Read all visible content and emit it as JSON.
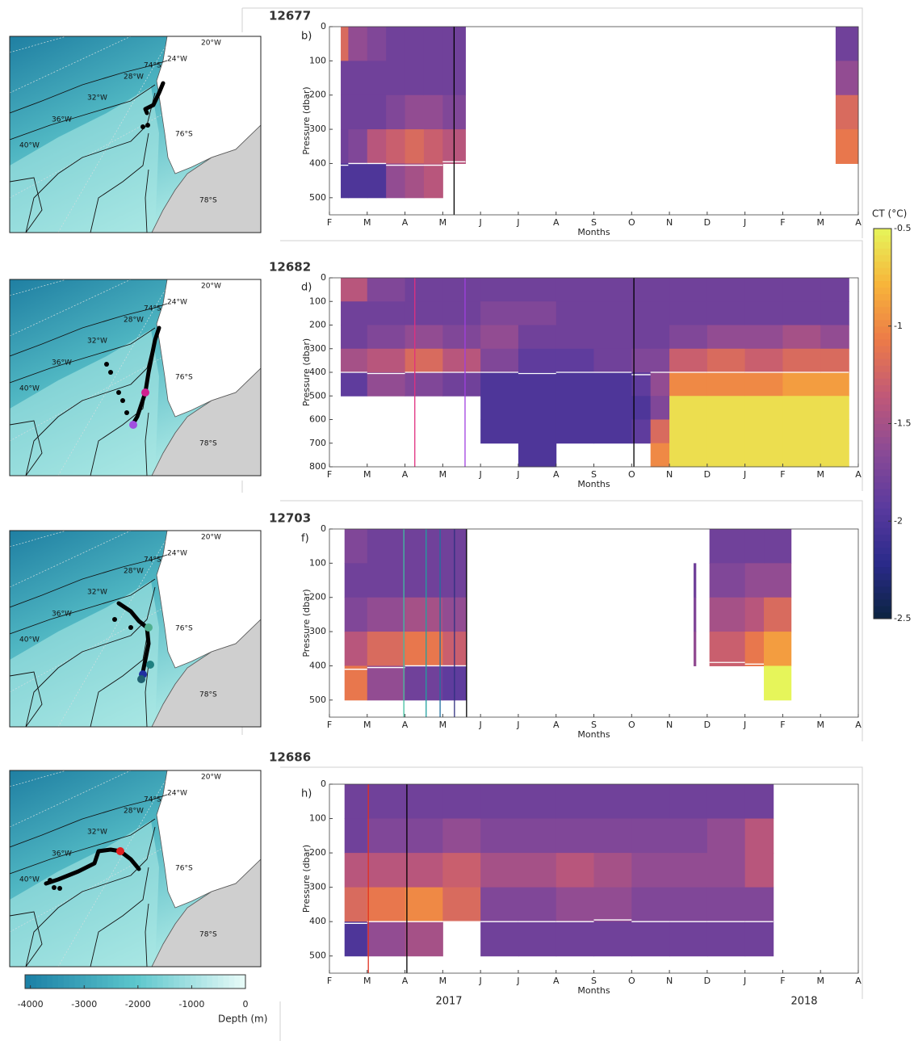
{
  "chart_data": [
    {
      "type": "heatmap",
      "title": "12677",
      "panel_label": "b)",
      "xlabel": "Months",
      "ylabel": "Pressure (dbar)",
      "categories": [
        "F",
        "M",
        "A",
        "M",
        "J",
        "J",
        "A",
        "S",
        "O",
        "N",
        "D",
        "J",
        "F",
        "M",
        "A"
      ],
      "xlim": [
        0,
        14
      ],
      "ylim": [
        0,
        550
      ],
      "yticks": [
        0,
        100,
        200,
        300,
        400,
        500
      ],
      "invert_y": true,
      "depth_bins": [
        0,
        100,
        200,
        300,
        400,
        500
      ],
      "line_color": "#ffffff",
      "columns": [
        {
          "bins": [
            0.3,
            0.5
          ],
          "values": [
            -1.2,
            -1.8,
            -1.8,
            -1.8,
            -2.0
          ],
          "line": 405
        },
        {
          "bins": [
            0.5,
            1
          ],
          "values": [
            -1.6,
            -1.8,
            -1.8,
            -1.7,
            -2.0
          ],
          "line": 400
        },
        {
          "bins": [
            1,
            1.5
          ],
          "values": [
            -1.7,
            -1.8,
            -1.8,
            -1.4,
            -2.0
          ],
          "line": 400
        },
        {
          "bins": [
            1.5,
            2
          ],
          "values": [
            -1.8,
            -1.8,
            -1.7,
            -1.3,
            -1.6
          ],
          "line": 405
        },
        {
          "bins": [
            2,
            2.5
          ],
          "values": [
            -1.8,
            -1.8,
            -1.6,
            -1.2,
            -1.5
          ],
          "line": 405
        },
        {
          "bins": [
            2.5,
            3
          ],
          "values": [
            -1.8,
            -1.8,
            -1.6,
            -1.3,
            -1.4
          ],
          "line": 405
        },
        {
          "bins": [
            3,
            3.6
          ],
          "values": [
            -1.8,
            -1.8,
            -1.7,
            -1.4,
            null
          ],
          "line": 395
        },
        {
          "bins": [
            13.4,
            14
          ],
          "values": [
            -1.8,
            -1.6,
            -1.2,
            -1.1,
            null
          ]
        }
      ],
      "vlines": [
        {
          "x": 3.3,
          "color": "#000000"
        }
      ]
    },
    {
      "type": "heatmap",
      "title": "12682",
      "panel_label": "d)",
      "xlabel": "Months",
      "ylabel": "Pressure (dbar)",
      "categories": [
        "F",
        "M",
        "A",
        "M",
        "J",
        "J",
        "A",
        "S",
        "O",
        "N",
        "D",
        "J",
        "F",
        "M",
        "A"
      ],
      "xlim": [
        0,
        14
      ],
      "ylim": [
        0,
        800
      ],
      "yticks": [
        0,
        100,
        200,
        300,
        400,
        500,
        600,
        700,
        800
      ],
      "invert_y": true,
      "depth_bins": [
        0,
        100,
        200,
        300,
        400,
        500,
        600,
        700,
        800
      ],
      "line_color": "#ffffff",
      "columns": [
        {
          "bins": [
            0.3,
            1
          ],
          "values": [
            -1.4,
            -1.8,
            -1.8,
            -1.5,
            -1.9,
            null,
            null,
            null
          ],
          "line": 400
        },
        {
          "bins": [
            1,
            2
          ],
          "values": [
            -1.7,
            -1.8,
            -1.7,
            -1.4,
            -1.6,
            null,
            null,
            null
          ],
          "line": 405
        },
        {
          "bins": [
            2,
            3
          ],
          "values": [
            -1.8,
            -1.8,
            -1.6,
            -1.2,
            -1.7,
            null,
            null,
            null
          ],
          "line": 400
        },
        {
          "bins": [
            3,
            4
          ],
          "values": [
            -1.8,
            -1.8,
            -1.7,
            -1.4,
            -1.8,
            null,
            null,
            null
          ],
          "line": 400
        },
        {
          "bins": [
            4,
            5
          ],
          "values": [
            -1.8,
            -1.7,
            -1.6,
            -1.7,
            -2.0,
            -2.0,
            -2.0,
            null
          ],
          "line": 400
        },
        {
          "bins": [
            5,
            6
          ],
          "values": [
            -1.8,
            -1.7,
            -1.8,
            -1.9,
            -2.0,
            -2.0,
            -2.0,
            -2.0
          ],
          "line": 405
        },
        {
          "bins": [
            6,
            7
          ],
          "values": [
            -1.8,
            -1.8,
            -1.8,
            -1.9,
            -2.0,
            -2.0,
            -2.0,
            null
          ],
          "line": 400
        },
        {
          "bins": [
            7,
            8
          ],
          "values": [
            -1.8,
            -1.8,
            -1.8,
            -1.8,
            -2.0,
            -2.0,
            -2.0,
            null
          ],
          "line": 400
        },
        {
          "bins": [
            8,
            8.5
          ],
          "values": [
            -1.8,
            -1.8,
            -1.8,
            -1.7,
            -1.9,
            -2.0,
            -1.9,
            null
          ],
          "line": 410
        },
        {
          "bins": [
            8.5,
            9
          ],
          "values": [
            -1.8,
            -1.8,
            -1.8,
            -1.7,
            -1.6,
            -1.7,
            -1.2,
            -1.0
          ],
          "line": 400
        },
        {
          "bins": [
            9,
            10
          ],
          "values": [
            -1.8,
            -1.8,
            -1.7,
            -1.3,
            -1.0,
            -0.6,
            -0.6,
            -0.6
          ],
          "line": 400
        },
        {
          "bins": [
            10,
            11
          ],
          "values": [
            -1.8,
            -1.8,
            -1.6,
            -1.2,
            -1.0,
            -0.6,
            -0.6,
            -0.6
          ],
          "line": 400
        },
        {
          "bins": [
            11,
            12
          ],
          "values": [
            -1.8,
            -1.8,
            -1.6,
            -1.3,
            -1.0,
            -0.6,
            -0.6,
            -0.6
          ],
          "line": 400
        },
        {
          "bins": [
            12,
            13
          ],
          "values": [
            -1.8,
            -1.8,
            -1.5,
            -1.2,
            -0.9,
            -0.6,
            -0.6,
            -0.6
          ],
          "line": 400
        },
        {
          "bins": [
            13,
            13.75
          ],
          "values": [
            -1.8,
            -1.8,
            -1.6,
            -1.2,
            -0.9,
            -0.6,
            -0.6,
            -0.6
          ],
          "line": 400
        }
      ],
      "vlines": [
        {
          "x": 2.26,
          "color": "#e0307f"
        },
        {
          "x": 3.59,
          "color": "#a040e0"
        },
        {
          "x": 8.06,
          "color": "#000000"
        }
      ]
    },
    {
      "type": "heatmap",
      "title": "12703",
      "panel_label": "f)",
      "xlabel": "Months",
      "ylabel": "Pressure (dbar)",
      "categories": [
        "F",
        "M",
        "A",
        "M",
        "J",
        "J",
        "A",
        "S",
        "O",
        "N",
        "D",
        "J",
        "F",
        "M",
        "A"
      ],
      "xlim": [
        0,
        14
      ],
      "ylim": [
        0,
        550
      ],
      "yticks": [
        0,
        100,
        200,
        300,
        400,
        500
      ],
      "invert_y": true,
      "depth_bins": [
        0,
        100,
        200,
        300,
        400,
        500
      ],
      "line_color": "#ffffff",
      "columns": [
        {
          "bins": [
            0.4,
            1
          ],
          "values": [
            -1.7,
            -1.8,
            -1.7,
            -1.4,
            -1.1
          ],
          "line": 410
        },
        {
          "bins": [
            1,
            2
          ],
          "values": [
            -1.8,
            -1.8,
            -1.6,
            -1.2,
            -1.6
          ],
          "line": 405
        },
        {
          "bins": [
            2,
            3
          ],
          "values": [
            -1.8,
            -1.8,
            -1.5,
            -1.1,
            -1.8
          ],
          "line": 400
        },
        {
          "bins": [
            3,
            3.63
          ],
          "values": [
            -1.8,
            -1.8,
            -1.6,
            -1.3,
            -1.9
          ],
          "line": 400
        },
        {
          "bins": [
            9.64,
            9.7
          ],
          "values": [
            null,
            -1.8,
            -1.7,
            -1.6,
            null
          ]
        },
        {
          "bins": [
            10.06,
            11
          ],
          "values": [
            -1.8,
            -1.7,
            -1.5,
            -1.3,
            null
          ],
          "line": 390
        },
        {
          "bins": [
            11,
            11.5
          ],
          "values": [
            -1.8,
            -1.6,
            -1.4,
            -1.1,
            null
          ],
          "line": 395
        },
        {
          "bins": [
            11.5,
            12.22
          ],
          "values": [
            -1.8,
            -1.6,
            -1.2,
            -0.9,
            -0.5
          ]
        }
      ],
      "vlines": [
        {
          "x": 1.97,
          "color": "#40c0a0"
        },
        {
          "x": 2.56,
          "color": "#20a0a0"
        },
        {
          "x": 2.93,
          "color": "#2070a0"
        },
        {
          "x": 3.31,
          "color": "#303080"
        },
        {
          "x": 3.63,
          "color": "#000000"
        }
      ]
    },
    {
      "type": "heatmap",
      "title": "12686",
      "panel_label": "h)",
      "xlabel": "Months",
      "ylabel": "Pressure (dbar)",
      "categories": [
        "F",
        "M",
        "A",
        "M",
        "J",
        "J",
        "A",
        "S",
        "O",
        "N",
        "D",
        "J",
        "F",
        "M",
        "A"
      ],
      "xlim": [
        0,
        14
      ],
      "ylim": [
        0,
        550
      ],
      "yticks": [
        0,
        100,
        200,
        300,
        400,
        500
      ],
      "invert_y": true,
      "depth_bins": [
        0,
        100,
        200,
        300,
        400,
        500
      ],
      "line_color": "#ffffff",
      "columns": [
        {
          "bins": [
            0.4,
            1
          ],
          "values": [
            -1.8,
            -1.8,
            -1.4,
            -1.2,
            -2.0
          ],
          "line": 405
        },
        {
          "bins": [
            1,
            2
          ],
          "values": [
            -1.8,
            -1.7,
            -1.4,
            -1.1,
            -1.6
          ],
          "line": 400
        },
        {
          "bins": [
            2,
            3
          ],
          "values": [
            -1.8,
            -1.7,
            -1.4,
            -1.0,
            -1.5
          ],
          "line": 400
        },
        {
          "bins": [
            3,
            4
          ],
          "values": [
            -1.8,
            -1.6,
            -1.3,
            -1.2,
            null
          ],
          "line": 400
        },
        {
          "bins": [
            4,
            5
          ],
          "values": [
            -1.8,
            -1.7,
            -1.5,
            -1.7,
            -1.8
          ],
          "line": 400
        },
        {
          "bins": [
            5,
            6
          ],
          "values": [
            -1.8,
            -1.7,
            -1.5,
            -1.7,
            -1.8
          ],
          "line": 400
        },
        {
          "bins": [
            6,
            7
          ],
          "values": [
            -1.8,
            -1.7,
            -1.4,
            -1.6,
            -1.8
          ],
          "line": 400
        },
        {
          "bins": [
            7,
            8
          ],
          "values": [
            -1.8,
            -1.7,
            -1.5,
            -1.6,
            -1.8
          ],
          "line": 395
        },
        {
          "bins": [
            8,
            9
          ],
          "values": [
            -1.8,
            -1.7,
            -1.6,
            -1.7,
            -1.8
          ],
          "line": 400
        },
        {
          "bins": [
            9,
            10
          ],
          "values": [
            -1.8,
            -1.7,
            -1.6,
            -1.7,
            -1.8
          ],
          "line": 400
        },
        {
          "bins": [
            10,
            11
          ],
          "values": [
            -1.8,
            -1.6,
            -1.6,
            -1.7,
            -1.8
          ],
          "line": 400
        },
        {
          "bins": [
            11,
            11.75
          ],
          "values": [
            -1.8,
            -1.4,
            -1.4,
            -1.7,
            -1.8
          ],
          "line": 400
        }
      ],
      "vlines": [
        {
          "x": 1.03,
          "color": "#e03020"
        },
        {
          "x": 2.05,
          "color": "#000000"
        }
      ]
    },
    {
      "type": "colorbar",
      "label": "CT (°C)",
      "ylim": [
        -2.5,
        -0.5
      ],
      "yticks": [
        -0.5,
        -1,
        -1.5,
        -2,
        -2.5
      ],
      "colors": [
        "#0b2440",
        "#2a2a8a",
        "#5a3a9e",
        "#8a4a96",
        "#c05878",
        "#ec7a48",
        "#f7b43a",
        "#e6f55a"
      ]
    },
    {
      "type": "colorbar",
      "label": "Depth (m)",
      "xlim": [
        -4100,
        0
      ],
      "xticks": [
        -4000,
        -3000,
        -2000,
        -1000,
        0
      ],
      "colors": [
        "#1a7fa5",
        "#5cc6cc",
        "#e8fbf8"
      ]
    }
  ],
  "year_labels": [
    "2017",
    "2018"
  ],
  "map_labels": [
    "20°W",
    "24°W",
    "74°S",
    "28°W",
    "32°W",
    "36°W",
    "40°W",
    "76°S",
    "78°S"
  ]
}
